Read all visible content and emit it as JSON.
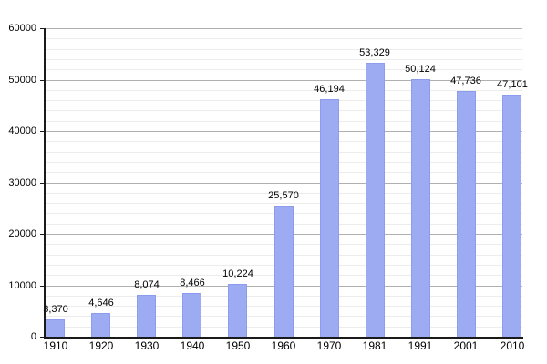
{
  "chart_data": {
    "type": "bar",
    "title": "",
    "categories": [
      "1910",
      "1920",
      "1930",
      "1940",
      "1950",
      "1960",
      "1970",
      "1981",
      "1991",
      "2001",
      "2010"
    ],
    "values": [
      3370,
      4646,
      8074,
      8466,
      10224,
      25570,
      46194,
      53329,
      50124,
      47736,
      47101
    ],
    "value_labels": [
      "3,370",
      "4,646",
      "8,074",
      "8,466",
      "10,224",
      "25,570",
      "46,194",
      "53,329",
      "50,124",
      "47,736",
      "47,101"
    ],
    "xlabel": "",
    "ylabel": "",
    "ylim": [
      0,
      60000
    ],
    "y_major_step": 10000,
    "y_minor_step": 2000,
    "y_tick_labels": [
      "0",
      "10000",
      "20000",
      "30000",
      "40000",
      "50000",
      "60000"
    ],
    "grid": "horizontal major+minor",
    "legend": "none",
    "colors": {
      "bar_fill": "#9dabf3",
      "bar_border": "#8c9cee",
      "major_grid": "#b0b0b0",
      "minor_grid": "#ececec",
      "axis": "#1a1a1a",
      "text": "#000000",
      "background": "#ffffff"
    }
  }
}
